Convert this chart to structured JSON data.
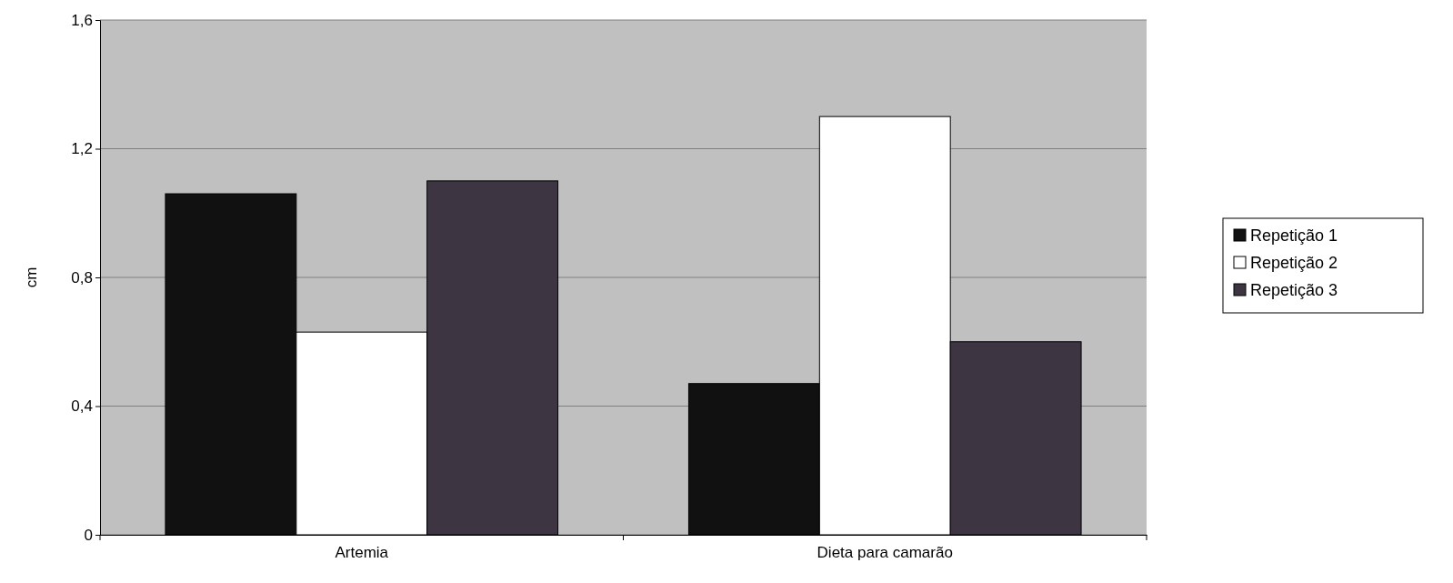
{
  "chart_data": {
    "type": "bar",
    "ylabel": "cm",
    "categories": [
      "Artemia",
      "Dieta para camarão"
    ],
    "series": [
      {
        "name": "Repetição 1",
        "color": "#111111",
        "values": [
          1.06,
          0.47
        ]
      },
      {
        "name": "Repetição 2",
        "color": "#ffffff",
        "values": [
          0.63,
          1.3
        ]
      },
      {
        "name": "Repetição 3",
        "color": "#3d3642",
        "values": [
          1.1,
          0.6
        ]
      }
    ],
    "ylim": [
      0,
      1.6
    ],
    "yticks": [
      {
        "value": 0,
        "label": "0"
      },
      {
        "value": 0.4,
        "label": "0,4"
      },
      {
        "value": 0.8,
        "label": "0,8"
      },
      {
        "value": 1.2,
        "label": "1,2"
      },
      {
        "value": 1.6,
        "label": "1,6"
      }
    ],
    "grid": "y",
    "legend": "right"
  }
}
